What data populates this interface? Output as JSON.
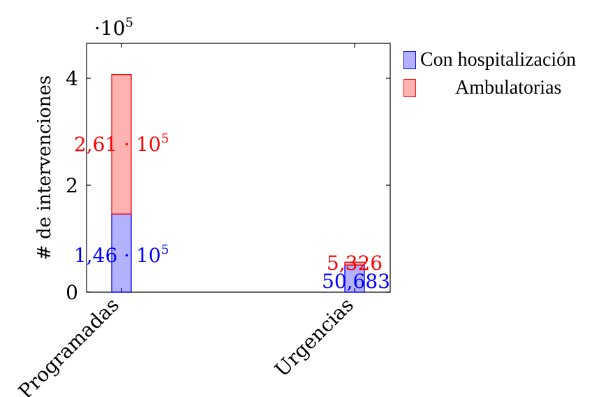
{
  "chart_data": {
    "type": "bar",
    "stacked": true,
    "categories": [
      "Programadas",
      "Urgencias"
    ],
    "series": [
      {
        "name": "Con hospitalización",
        "values": [
          146000,
          50683
        ],
        "labels": [
          "1,46 · 10",
          "50,683"
        ],
        "color": "#0000ff"
      },
      {
        "name": "Ambulatorias",
        "values": [
          261000,
          5326
        ],
        "labels": [
          "2,61 · 10",
          "5,326"
        ],
        "color": "#ff0000"
      }
    ],
    "ylabel": "# de intervenciones",
    "ylim": [
      0,
      470000
    ],
    "yticks": [
      0,
      2,
      4
    ],
    "y_scale_label": "·10",
    "exponent": "5",
    "grid": false,
    "legend_position": "right-outside"
  }
}
